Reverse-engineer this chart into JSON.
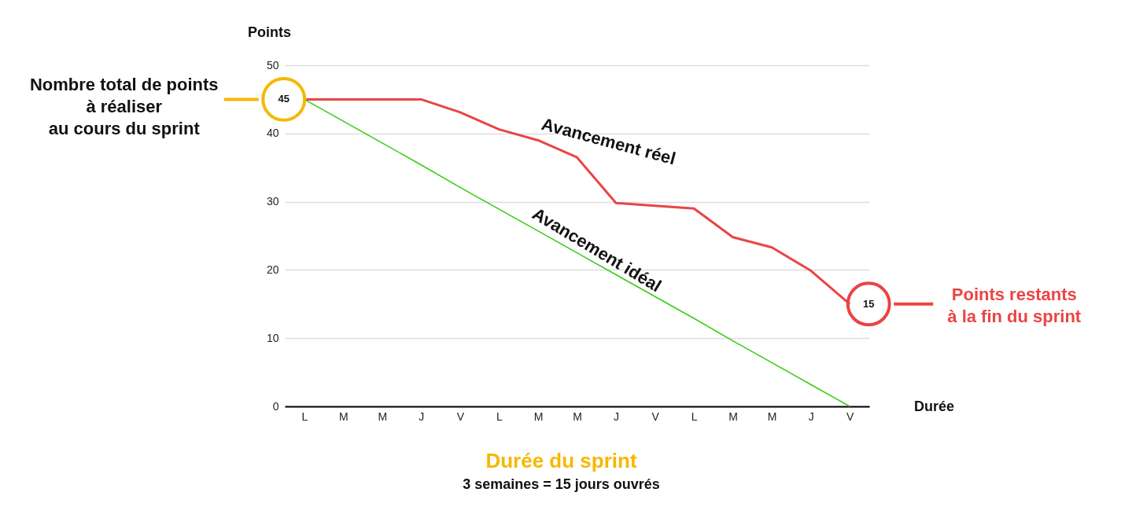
{
  "chart_data": {
    "type": "line",
    "xlabel": "Durée",
    "ylabel": "Points",
    "categories": [
      "L",
      "M",
      "M",
      "J",
      "V",
      "L",
      "M",
      "M",
      "J",
      "V",
      "L",
      "M",
      "M",
      "J",
      "V"
    ],
    "series": [
      {
        "name": "Avancement réel",
        "color": "#ea4444",
        "values": [
          45,
          45,
          45,
          45,
          43.1,
          40.6,
          39,
          36.5,
          29.8,
          29.4,
          29,
          24.8,
          23.3,
          19.9,
          15
        ],
        "value_labels": [
          "45",
          null,
          null,
          null,
          null,
          null,
          null,
          null,
          null,
          null,
          null,
          null,
          null,
          null,
          "15"
        ]
      },
      {
        "name": "Avancement idéal",
        "color": "#33cc11",
        "values": [
          45,
          41.8,
          38.6,
          35.4,
          32.1,
          28.9,
          25.7,
          22.5,
          19.3,
          16.1,
          12.9,
          9.6,
          6.4,
          3.2,
          0
        ]
      }
    ],
    "ylim": [
      0,
      50
    ],
    "yticks": [
      0,
      10,
      20,
      30,
      40,
      50
    ],
    "grid": "y",
    "legend": false,
    "marker": "none",
    "line_style": "solid",
    "annotations": [
      "Nombre total de points\nà réaliser\nau cours du sprint",
      "Points restants\nà la fin du sprint",
      "Durée du sprint",
      "3 semaines = 15 jours ouvrés"
    ]
  }
}
